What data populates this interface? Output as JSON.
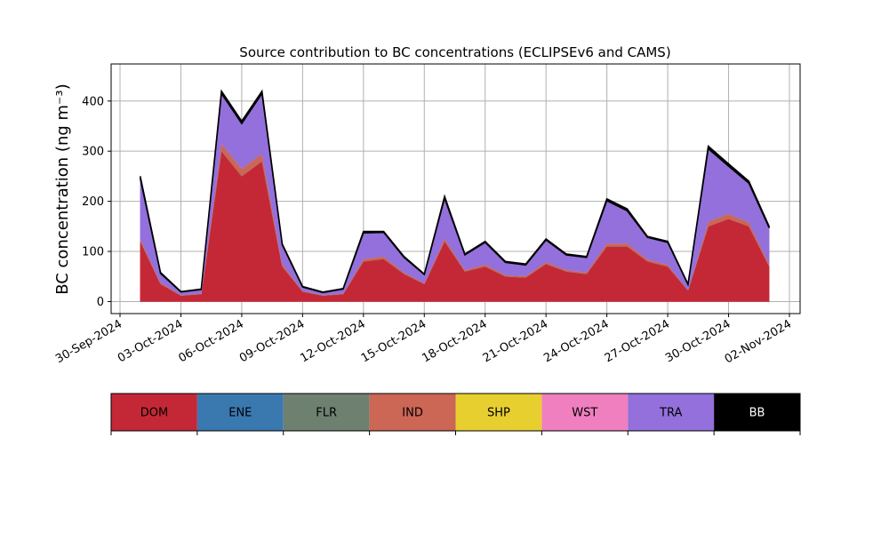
{
  "chart_data": {
    "type": "stacked_area",
    "title": "Source contribution to BC concentrations (ECLIPSEv6 and CAMS)",
    "y_label": "BC concentration (ng m⁻³)",
    "x": [
      "01-Oct-2024",
      "02-Oct-2024",
      "03-Oct-2024",
      "04-Oct-2024",
      "05-Oct-2024",
      "06-Oct-2024",
      "07-Oct-2024",
      "08-Oct-2024",
      "09-Oct-2024",
      "10-Oct-2024",
      "11-Oct-2024",
      "12-Oct-2024",
      "13-Oct-2024",
      "14-Oct-2024",
      "15-Oct-2024",
      "16-Oct-2024",
      "17-Oct-2024",
      "18-Oct-2024",
      "19-Oct-2024",
      "20-Oct-2024",
      "21-Oct-2024",
      "22-Oct-2024",
      "23-Oct-2024",
      "24-Oct-2024",
      "25-Oct-2024",
      "26-Oct-2024",
      "27-Oct-2024",
      "28-Oct-2024",
      "29-Oct-2024",
      "30-Oct-2024",
      "31-Oct-2024",
      "01-Nov-2024"
    ],
    "series": [
      {
        "name": "DOM",
        "color": "#c42836",
        "values": [
          120,
          35,
          12,
          15,
          300,
          250,
          280,
          70,
          20,
          12,
          15,
          80,
          85,
          55,
          35,
          120,
          60,
          70,
          50,
          48,
          75,
          60,
          55,
          110,
          110,
          80,
          70,
          22,
          150,
          165,
          150,
          70
        ]
      },
      {
        "name": "ENE",
        "color": "#3a78b0",
        "values": [
          0,
          0,
          0,
          0,
          0,
          0,
          0,
          0,
          0,
          0,
          0,
          0,
          0,
          0,
          0,
          0,
          0,
          0,
          0,
          0,
          0,
          0,
          0,
          0,
          0,
          0,
          0,
          0,
          0,
          0,
          0,
          0
        ]
      },
      {
        "name": "FLR",
        "color": "#6e8070",
        "values": [
          0,
          0,
          0,
          0,
          0,
          0,
          0,
          0,
          0,
          0,
          0,
          0,
          0,
          0,
          0,
          0,
          0,
          0,
          0,
          0,
          0,
          0,
          0,
          0,
          0,
          0,
          0,
          0,
          0,
          0,
          0,
          0
        ]
      },
      {
        "name": "IND",
        "color": "#cc6655",
        "values": [
          5,
          3,
          1,
          1,
          15,
          15,
          15,
          5,
          1,
          1,
          1,
          5,
          5,
          3,
          2,
          6,
          3,
          4,
          3,
          3,
          4,
          3,
          3,
          6,
          6,
          4,
          4,
          1,
          10,
          10,
          8,
          5
        ]
      },
      {
        "name": "SHP",
        "color": "#e8cf30",
        "values": [
          0,
          0,
          0,
          0,
          0,
          0,
          0,
          0,
          0,
          0,
          0,
          0,
          0,
          0,
          0,
          0,
          0,
          0,
          0,
          0,
          0,
          0,
          0,
          0,
          0,
          0,
          0,
          0,
          0,
          0,
          0,
          0
        ]
      },
      {
        "name": "WST",
        "color": "#f07fbf",
        "values": [
          0,
          0,
          0,
          0,
          0,
          0,
          0,
          0,
          0,
          0,
          0,
          0,
          0,
          0,
          0,
          0,
          0,
          0,
          0,
          0,
          0,
          0,
          0,
          0,
          0,
          0,
          0,
          0,
          0,
          0,
          0,
          0
        ]
      },
      {
        "name": "TRA",
        "color": "#9370db",
        "values": [
          120,
          18,
          6,
          8,
          100,
          90,
          120,
          38,
          8,
          5,
          9,
          52,
          48,
          30,
          17,
          80,
          30,
          44,
          25,
          22,
          44,
          30,
          30,
          85,
          65,
          44,
          44,
          11,
          145,
          95,
          78,
          72
        ]
      },
      {
        "name": "BB",
        "color": "#000000",
        "values": [
          5,
          2,
          1,
          1,
          5,
          5,
          5,
          2,
          1,
          1,
          1,
          3,
          2,
          2,
          1,
          4,
          2,
          2,
          2,
          2,
          2,
          2,
          2,
          4,
          4,
          2,
          2,
          1,
          5,
          5,
          4,
          3
        ]
      }
    ],
    "xlim": [
      "30-Sep-2024",
      "02-Nov-2024"
    ],
    "xticks": [
      "30-Sep-2024",
      "03-Oct-2024",
      "06-Oct-2024",
      "09-Oct-2024",
      "12-Oct-2024",
      "15-Oct-2024",
      "18-Oct-2024",
      "21-Oct-2024",
      "24-Oct-2024",
      "27-Oct-2024",
      "30-Oct-2024",
      "02-Nov-2024"
    ],
    "ylim": [
      -24,
      474
    ],
    "yticks": [
      0,
      100,
      200,
      300,
      400
    ],
    "grid": true
  }
}
